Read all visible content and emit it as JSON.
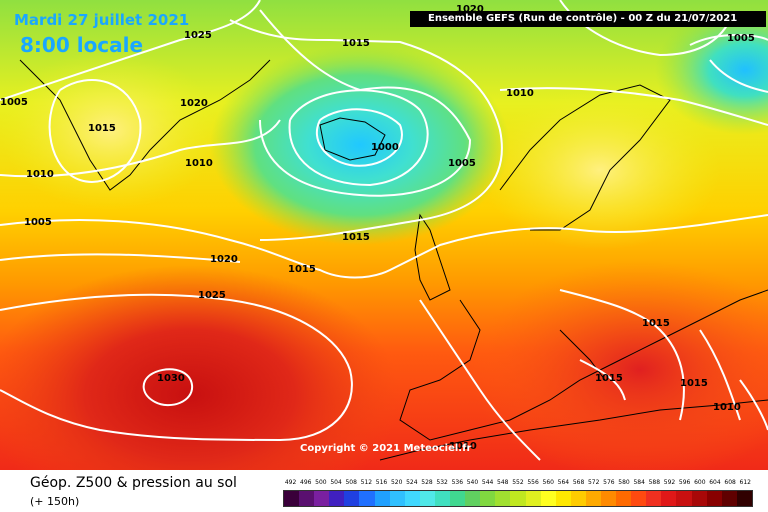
{
  "header": {
    "date": "Mardi 27 juillet 2021",
    "local_time": "8:00 locale",
    "run": "Ensemble GEFS  (Run de contrôle)  -  00 Z du 21/07/2021"
  },
  "copyright": "Copyright © 2021 Meteociel.fr",
  "footer": {
    "parameter": "Géop. Z500 & pression au sol",
    "lead_time": "(+ 150h)"
  },
  "scale": {
    "labels": [
      "492",
      "496",
      "500",
      "504",
      "508",
      "512",
      "516",
      "520",
      "524",
      "528",
      "532",
      "536",
      "540",
      "544",
      "548",
      "552",
      "556",
      "560",
      "564",
      "568",
      "572",
      "576",
      "580",
      "584",
      "588",
      "592",
      "596",
      "600",
      "604",
      "608",
      "612"
    ],
    "colors": [
      "#3a003a",
      "#5a1070",
      "#7a20a0",
      "#4020c0",
      "#2040e0",
      "#2070ff",
      "#20a0ff",
      "#30c0ff",
      "#40d8ff",
      "#50e8e8",
      "#40e0c0",
      "#40d890",
      "#60d060",
      "#80d840",
      "#a0e030",
      "#c0e820",
      "#e0f020",
      "#ffff20",
      "#ffe800",
      "#ffcc00",
      "#ffaa00",
      "#ff8a00",
      "#ff6a00",
      "#ff4a10",
      "#f03020",
      "#e01818",
      "#c81010",
      "#a80808",
      "#880000",
      "#600000",
      "#300000"
    ]
  },
  "isobars": [
    {
      "value": "1025"
    },
    {
      "value": "1015"
    },
    {
      "value": "1020"
    },
    {
      "value": "1010"
    },
    {
      "value": "1000"
    },
    {
      "value": "1005"
    },
    {
      "value": "1005"
    },
    {
      "value": "1005"
    },
    {
      "value": "1010"
    },
    {
      "value": "1005"
    },
    {
      "value": "1015"
    },
    {
      "value": "1020"
    },
    {
      "value": "1015"
    },
    {
      "value": "1025"
    },
    {
      "value": "1030"
    },
    {
      "value": "1015"
    },
    {
      "value": "1015"
    },
    {
      "value": "1015"
    },
    {
      "value": "1010"
    },
    {
      "value": "1010"
    },
    {
      "value": "1005"
    },
    {
      "value": "1010"
    },
    {
      "value": "1020"
    }
  ]
}
